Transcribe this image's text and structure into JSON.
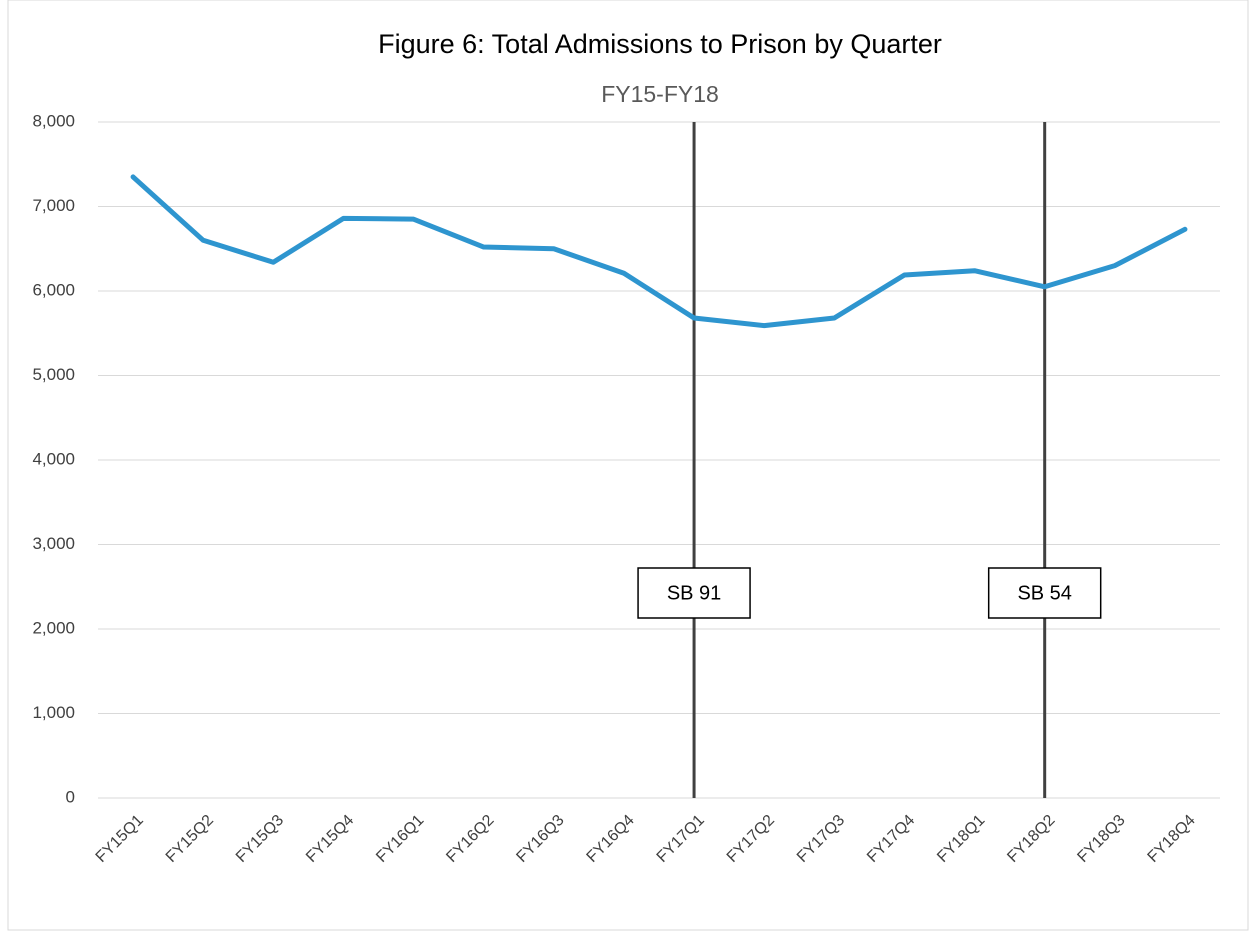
{
  "chart_data": {
    "type": "line",
    "title": "Figure 6: Total Admissions to Prison by Quarter",
    "subtitle": "FY15-FY18",
    "categories": [
      "FY15Q1",
      "FY15Q2",
      "FY15Q3",
      "FY15Q4",
      "FY16Q1",
      "FY16Q2",
      "FY16Q3",
      "FY16Q4",
      "FY17Q1",
      "FY17Q2",
      "FY17Q3",
      "FY17Q4",
      "FY18Q1",
      "FY18Q2",
      "FY18Q3",
      "FY18Q4"
    ],
    "series": [
      {
        "name": "Total Admissions",
        "color": "#2e95cf",
        "values": [
          7350,
          6600,
          6340,
          6860,
          6850,
          6520,
          6500,
          6210,
          5680,
          5590,
          5680,
          6190,
          6240,
          6050,
          6300,
          6730
        ]
      }
    ],
    "ylim": [
      0,
      8000
    ],
    "yticks": [
      0,
      {
        "value": 1000,
        "label": "1,000"
      },
      {
        "value": 2000,
        "label": "2,000"
      },
      {
        "value": 3000,
        "label": "3,000"
      },
      {
        "value": 4000,
        "label": "4,000"
      },
      {
        "value": 5000,
        "label": "5,000"
      },
      {
        "value": 6000,
        "label": "6,000"
      },
      {
        "value": 7000,
        "label": "7,000"
      },
      {
        "value": 8000,
        "label": "8,000"
      }
    ],
    "grid": true,
    "annotations": [
      {
        "label": "SB 91",
        "x": "FY17Q1"
      },
      {
        "label": "SB 54",
        "x": "FY18Q2"
      }
    ]
  }
}
